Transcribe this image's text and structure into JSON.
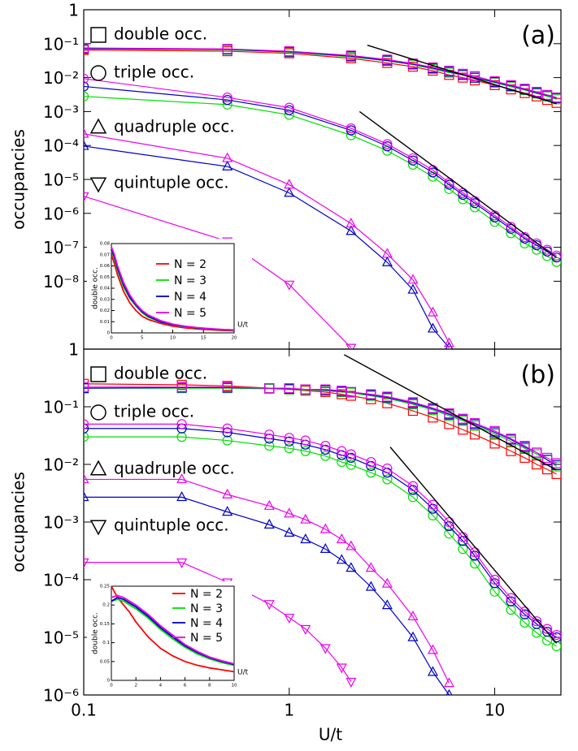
{
  "chart_data": [
    {
      "type": "line",
      "panel_label": "(a)",
      "ylabel": "occupancies",
      "xscale": "log",
      "yscale": "log",
      "xlim": [
        0.1,
        21
      ],
      "xticks": [
        0.1,
        1,
        10
      ],
      "xtick_labels": false,
      "ylim": [
        1e-10,
        1
      ],
      "yticks": [
        1,
        {
          "value": 0.1,
          "label": "10⁻¹"
        },
        {
          "value": 0.01,
          "label": "10⁻²"
        },
        {
          "value": 0.001,
          "label": "10⁻³"
        },
        {
          "value": 0.0001,
          "label": "10⁻⁴"
        },
        {
          "value": 1e-05,
          "label": "10⁻⁵"
        },
        {
          "value": 1e-06,
          "label": "10⁻⁶"
        },
        {
          "value": 1e-07,
          "label": "10⁻⁷"
        },
        {
          "value": 1e-08,
          "label": "10⁻⁸"
        }
      ],
      "x": [
        0.1,
        0.5,
        1,
        2,
        3,
        4,
        5,
        6,
        7,
        8,
        10,
        12,
        14,
        16,
        18,
        20
      ],
      "groups": [
        {
          "label": "double occ.",
          "marker": "square",
          "series": [
            {
              "color": "#ff0000",
              "values": [
                0.065,
                0.06,
                0.052,
                0.037,
                0.027,
                0.021,
                0.016,
                0.012,
                0.01,
                0.0083,
                0.006,
                0.0045,
                0.0035,
                0.0028,
                0.0022,
                0.0018
              ]
            },
            {
              "color": "#00e000",
              "values": [
                0.07,
                0.066,
                0.056,
                0.041,
                0.031,
                0.024,
                0.018,
                0.014,
                0.012,
                0.0098,
                0.0071,
                0.0054,
                0.0043,
                0.0034,
                0.0028,
                0.0023
              ]
            },
            {
              "color": "#0000cc",
              "values": [
                0.072,
                0.068,
                0.058,
                0.043,
                0.032,
                0.025,
                0.019,
                0.015,
                0.012,
                0.01,
                0.0074,
                0.0057,
                0.0045,
                0.0036,
                0.003,
                0.0025
              ]
            },
            {
              "color": "#ee00ee",
              "values": [
                0.075,
                0.07,
                0.06,
                0.045,
                0.034,
                0.026,
                0.02,
                0.016,
                0.013,
                0.011,
                0.0078,
                0.006,
                0.0047,
                0.0038,
                0.0031,
                0.0026
              ]
            }
          ]
        },
        {
          "label": "triple occ.",
          "marker": "circle",
          "series": [
            {
              "color": "#00e000",
              "values": [
                0.0028,
                0.0016,
                0.0008,
                0.0002,
                7e-05,
                2.7e-05,
                1.2e-05,
                5.2e-06,
                2.6e-06,
                1.5e-06,
                5.6e-07,
                2.6e-07,
                1.3e-07,
                8.5e-08,
                5.5e-08,
                3.7e-08
              ]
            },
            {
              "color": "#0000cc",
              "values": [
                0.0055,
                0.0022,
                0.0011,
                0.00028,
                9.5e-05,
                3.6e-05,
                1.6e-05,
                7e-06,
                3.5e-06,
                2e-06,
                7.6e-07,
                3.5e-07,
                1.8e-07,
                1.15e-07,
                7.5e-08,
                5e-08
              ]
            },
            {
              "color": "#ee00ee",
              "values": [
                0.0093,
                0.0026,
                0.0013,
                0.00032,
                0.00011,
                4.2e-05,
                1.9e-05,
                8e-06,
                4e-06,
                2.3e-06,
                8.7e-07,
                4e-07,
                2e-07,
                1.3e-07,
                8.5e-08,
                5.7e-08
              ]
            }
          ]
        },
        {
          "label": "quadruple occ.",
          "marker": "triangle-up",
          "series": [
            {
              "color": "#0000cc",
              "values": [
                9.6e-05,
                2.4e-05,
                4e-06,
                3e-07,
                3.6e-08,
                5.6e-09,
                4e-10,
                1.1e-10,
                null,
                null,
                null,
                null,
                null,
                null,
                null,
                null
              ]
            },
            {
              "color": "#ee00ee",
              "values": [
                0.00022,
                4.2e-05,
                7e-06,
                5e-07,
                6.4e-08,
                1.1e-08,
                1.2e-09,
                1.5e-10,
                null,
                null,
                null,
                null,
                null,
                null,
                null,
                null
              ]
            }
          ]
        },
        {
          "label": "quintuple occ.",
          "marker": "triangle-down",
          "series": [
            {
              "color": "#ee00ee",
              "values": [
                3.2e-06,
                1.5e-07,
                8e-09,
                1.1e-10,
                null,
                null,
                null,
                null,
                null,
                null,
                null,
                null,
                null,
                null,
                null,
                null
              ]
            }
          ]
        }
      ],
      "fit_lines": [
        {
          "x": [
            2.4,
            20
          ],
          "values": [
            0.09,
            0.0017
          ]
        },
        {
          "x": [
            2.2,
            20
          ],
          "values": [
            0.001,
            5e-08
          ]
        }
      ],
      "inset": {
        "xlabel": "U/t",
        "ylabel": "double occ.",
        "xlim": [
          0,
          20
        ],
        "ylim": [
          0,
          0.08
        ],
        "xticks": [
          0,
          5,
          10,
          15,
          20
        ],
        "yticks": [
          0,
          0.01,
          0.02,
          0.03,
          0.04,
          0.05,
          0.06,
          0.07,
          0.08
        ],
        "x": [
          0,
          0.5,
          1,
          2,
          3,
          4,
          5,
          6,
          8,
          10,
          12,
          14,
          16,
          18,
          20
        ],
        "series": [
          {
            "name": "N = 2",
            "color": "#ff0000",
            "values": [
              0.07,
              0.062,
              0.052,
              0.037,
              0.027,
              0.02,
              0.015,
              0.012,
              0.0085,
              0.006,
              0.0045,
              0.0035,
              0.0028,
              0.0022,
              0.0018
            ]
          },
          {
            "name": "N = 3",
            "color": "#00e000",
            "values": [
              0.074,
              0.066,
              0.056,
              0.041,
              0.031,
              0.024,
              0.018,
              0.014,
              0.0098,
              0.0071,
              0.0054,
              0.0043,
              0.0034,
              0.0028,
              0.0023
            ]
          },
          {
            "name": "N = 4",
            "color": "#0000cc",
            "values": [
              0.075,
              0.068,
              0.058,
              0.043,
              0.032,
              0.025,
              0.019,
              0.015,
              0.01,
              0.0074,
              0.0057,
              0.0045,
              0.0036,
              0.003,
              0.0025
            ]
          },
          {
            "name": "N = 5",
            "color": "#ee00ee",
            "values": [
              0.077,
              0.07,
              0.06,
              0.045,
              0.034,
              0.026,
              0.02,
              0.016,
              0.011,
              0.0078,
              0.006,
              0.0047,
              0.0038,
              0.0031,
              0.0026
            ]
          }
        ]
      }
    },
    {
      "type": "line",
      "panel_label": "(b)",
      "ylabel": "occupancies",
      "xlabel": "U/t",
      "xscale": "log",
      "yscale": "log",
      "xlim": [
        0.1,
        21
      ],
      "xticks": [
        0.1,
        1,
        10
      ],
      "xtick_labels": true,
      "ylim": [
        1e-06,
        1
      ],
      "yticks": [
        1,
        {
          "value": 0.1,
          "label": "10⁻¹"
        },
        {
          "value": 0.01,
          "label": "10⁻²"
        },
        {
          "value": 0.001,
          "label": "10⁻³"
        },
        {
          "value": 0.0001,
          "label": "10⁻⁴"
        },
        {
          "value": 1e-05,
          "label": "10⁻⁵"
        },
        {
          "value": 1e-06,
          "label": "10⁻⁶"
        }
      ],
      "x": [
        0.1,
        0.3,
        0.5,
        0.8,
        1,
        1.2,
        1.5,
        1.8,
        2,
        2.5,
        3,
        4,
        5,
        6,
        7,
        8,
        10,
        12,
        14,
        16,
        18,
        20
      ],
      "groups": [
        {
          "label": "double occ.",
          "marker": "square",
          "series": [
            {
              "color": "#ff0000",
              "values": [
                0.25,
                0.24,
                0.23,
                0.21,
                0.2,
                0.19,
                0.18,
                0.165,
                0.155,
                0.135,
                0.115,
                0.085,
                0.065,
                0.05,
                0.04,
                0.033,
                0.023,
                0.017,
                0.013,
                0.01,
                0.0082,
                0.0068
              ]
            },
            {
              "color": "#00e000",
              "values": [
                0.21,
                0.21,
                0.21,
                0.205,
                0.2,
                0.195,
                0.19,
                0.18,
                0.175,
                0.155,
                0.14,
                0.11,
                0.088,
                0.07,
                0.057,
                0.047,
                0.034,
                0.025,
                0.019,
                0.015,
                0.012,
                0.0092
              ]
            },
            {
              "color": "#0000cc",
              "values": [
                0.21,
                0.215,
                0.215,
                0.21,
                0.205,
                0.2,
                0.195,
                0.185,
                0.18,
                0.16,
                0.145,
                0.115,
                0.092,
                0.074,
                0.06,
                0.05,
                0.036,
                0.027,
                0.02,
                0.016,
                0.012,
                0.0098
              ]
            },
            {
              "color": "#ee00ee",
              "values": [
                0.22,
                0.22,
                0.22,
                0.21,
                0.21,
                0.2,
                0.2,
                0.19,
                0.18,
                0.165,
                0.15,
                0.12,
                0.095,
                0.077,
                0.062,
                0.052,
                0.038,
                0.028,
                0.021,
                0.016,
                0.013,
                0.0105
              ]
            }
          ]
        },
        {
          "label": "triple occ.",
          "marker": "circle",
          "series": [
            {
              "color": "#00e000",
              "values": [
                0.03,
                0.03,
                0.026,
                0.021,
                0.019,
                0.017,
                0.014,
                0.011,
                0.0098,
                0.0072,
                0.0055,
                0.0027,
                0.0013,
                0.00063,
                0.00034,
                0.00019,
                6.2e-05,
                3e-05,
                1.8e-05,
                1.2e-05,
                8.8e-06,
                7e-06
              ]
            },
            {
              "color": "#0000cc",
              "values": [
                0.042,
                0.042,
                0.036,
                0.028,
                0.025,
                0.022,
                0.018,
                0.0145,
                0.013,
                0.0094,
                0.0072,
                0.0036,
                0.0017,
                0.00085,
                0.00047,
                0.00026,
                8.7e-05,
                4.2e-05,
                2.5e-05,
                1.7e-05,
                1.25e-05,
                1e-05
              ]
            },
            {
              "color": "#ee00ee",
              "values": [
                0.05,
                0.05,
                0.042,
                0.033,
                0.029,
                0.026,
                0.021,
                0.017,
                0.015,
                0.011,
                0.0085,
                0.0042,
                0.002,
                0.001,
                0.00055,
                0.0003,
                0.0001,
                4.8e-05,
                2.8e-05,
                1.9e-05,
                1.4e-05,
                1.1e-05
              ]
            }
          ]
        },
        {
          "label": "quadruple occ.",
          "marker": "triangle-up",
          "series": [
            {
              "color": "#0000cc",
              "values": [
                0.0027,
                0.0027,
                0.0015,
                0.0009,
                0.00065,
                0.0005,
                0.00034,
                0.00022,
                0.00016,
                7.5e-05,
                3.6e-05,
                1e-05,
                2.5e-06,
                1e-06,
                null,
                null,
                null,
                null,
                null,
                null,
                null,
                null
              ]
            },
            {
              "color": "#ee00ee",
              "values": [
                0.0055,
                0.0055,
                0.003,
                0.0019,
                0.0014,
                0.0011,
                0.00075,
                0.0005,
                0.00038,
                0.00016,
                8.5e-05,
                2.3e-05,
                6e-06,
                1.6e-06,
                null,
                null,
                null,
                null,
                null,
                null,
                null,
                null
              ]
            }
          ]
        },
        {
          "label": "quintuple occ.",
          "marker": "triangle-down",
          "series": [
            {
              "color": "#ee00ee",
              "values": [
                0.0002,
                0.0002,
                9e-05,
                3.8e-05,
                2.2e-05,
                1.4e-05,
                6.5e-06,
                3e-06,
                1.7e-06,
                null,
                null,
                null,
                null,
                null,
                null,
                null,
                null,
                null,
                null,
                null,
                null,
                null
              ]
            }
          ]
        }
      ],
      "fit_lines": [
        {
          "x": [
            1.85,
            20
          ],
          "values": [
            0.8,
            0.008
          ]
        },
        {
          "x": [
            3.1,
            20
          ],
          "values": [
            0.02,
            7.9e-06
          ]
        }
      ],
      "inset": {
        "xlabel": "U/t",
        "ylabel": "double occ.",
        "xlim": [
          0,
          10
        ],
        "ylim": [
          0,
          0.25
        ],
        "xticks": [
          0,
          2,
          4,
          6,
          8,
          10
        ],
        "yticks": [
          0,
          0.05,
          0.1,
          0.15,
          0.2,
          0.25
        ],
        "x": [
          0,
          0.5,
          1,
          1.5,
          2,
          3,
          4,
          5,
          6,
          7,
          8,
          9,
          10
        ],
        "series": [
          {
            "name": "N = 2",
            "color": "#ff0000",
            "values": [
              0.25,
              0.22,
              0.2,
              0.18,
              0.155,
              0.115,
              0.085,
              0.065,
              0.05,
              0.04,
              0.033,
              0.028,
              0.023
            ]
          },
          {
            "name": "N = 3",
            "color": "#00e000",
            "values": [
              0.21,
              0.215,
              0.21,
              0.2,
              0.19,
              0.165,
              0.135,
              0.11,
              0.088,
              0.07,
              0.057,
              0.047,
              0.04
            ]
          },
          {
            "name": "N = 4",
            "color": "#0000cc",
            "values": [
              0.21,
              0.22,
              0.215,
              0.205,
              0.195,
              0.17,
              0.14,
              0.115,
              0.092,
              0.074,
              0.06,
              0.05,
              0.042
            ]
          },
          {
            "name": "N = 5",
            "color": "#ee00ee",
            "values": [
              0.22,
              0.225,
              0.22,
              0.21,
              0.2,
              0.175,
              0.145,
              0.12,
              0.095,
              0.077,
              0.062,
              0.052,
              0.044
            ]
          }
        ]
      }
    }
  ]
}
